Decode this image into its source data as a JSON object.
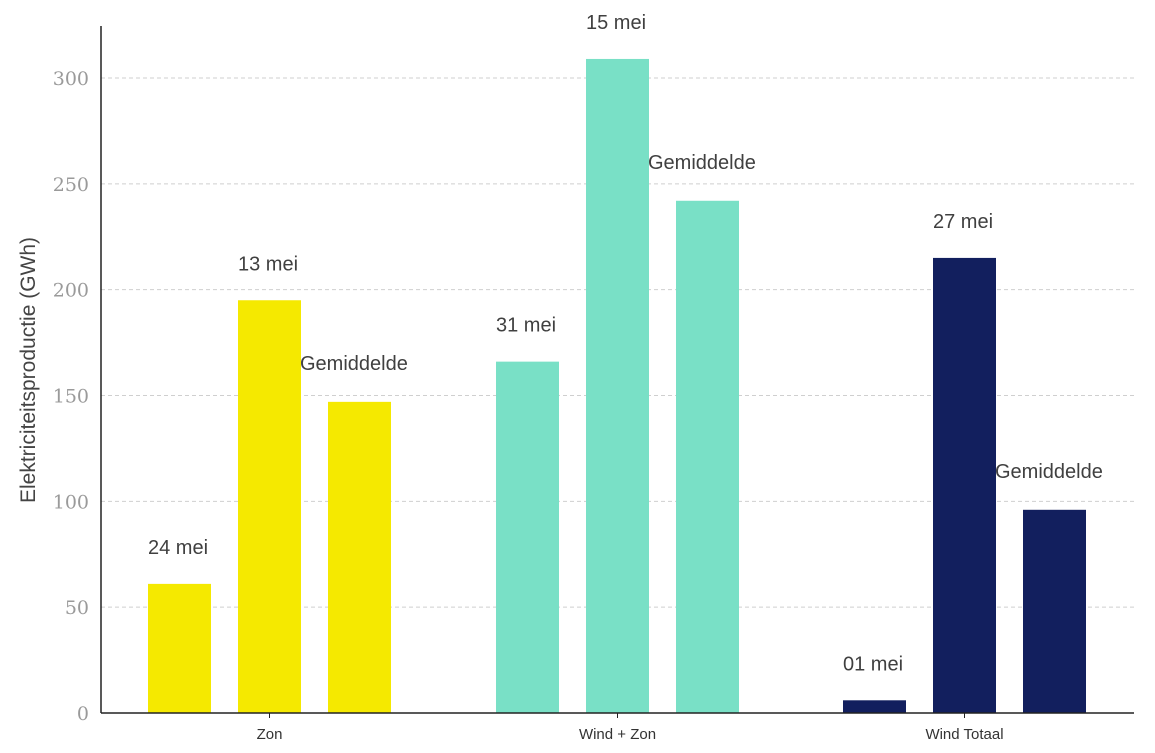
{
  "chart_data": {
    "type": "bar",
    "title": "",
    "xlabel": "",
    "ylabel": "Elektriciteitsproductie (GWh)",
    "ylim": [
      0,
      325
    ],
    "yticks": [
      0,
      50,
      100,
      150,
      200,
      250,
      300
    ],
    "grid": true,
    "legend": "none",
    "groups": [
      {
        "category": "Zon",
        "color": "#f5e900",
        "bars": [
          {
            "label": "24 mei",
            "value": 61
          },
          {
            "label": "13 mei",
            "value": 195
          },
          {
            "label": "Gemiddelde",
            "value": 147
          }
        ]
      },
      {
        "category": "Wind + Zon",
        "color": "#79e0c6",
        "bars": [
          {
            "label": "31 mei",
            "value": 166
          },
          {
            "label": "15 mei",
            "value": 309
          },
          {
            "label": "Gemiddelde",
            "value": 242
          }
        ]
      },
      {
        "category": "Wind Totaal",
        "color": "#121f5e",
        "bars": [
          {
            "label": "01 mei",
            "value": 6
          },
          {
            "label": "27 mei",
            "value": 215
          },
          {
            "label": "Gemiddelde",
            "value": 96
          }
        ]
      }
    ]
  }
}
